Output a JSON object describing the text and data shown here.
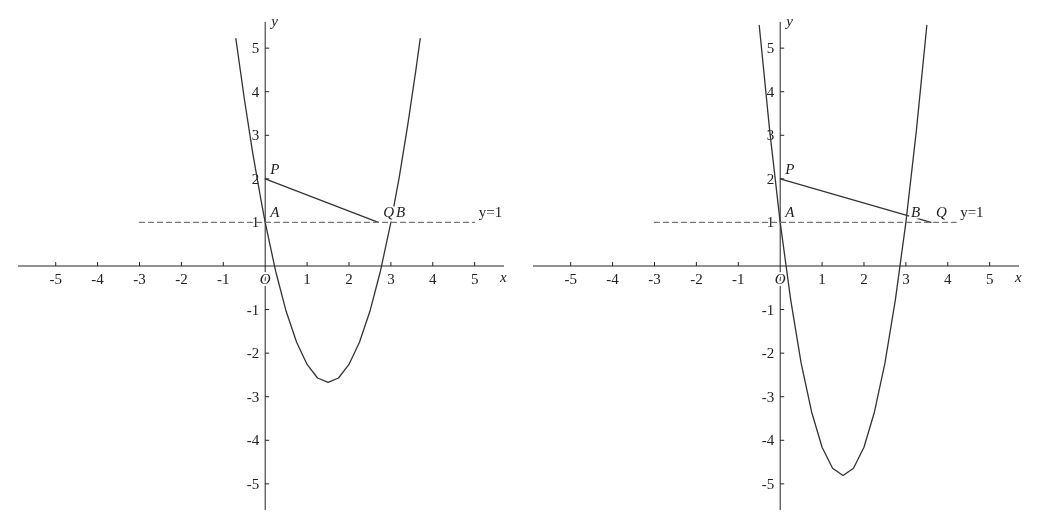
{
  "chart_data": [
    {
      "type": "line",
      "xlabel": "x",
      "ylabel": "y",
      "xlim": [
        -5.9,
        5.7
      ],
      "ylim": [
        -5.6,
        5.6
      ],
      "xticks": [
        -5,
        -4,
        -3,
        -2,
        -1,
        {
          "value": 0,
          "label": "O"
        },
        1,
        2,
        3,
        4,
        5
      ],
      "yticks": [
        -5,
        -4,
        -3,
        -2,
        -1,
        1,
        2,
        3,
        4,
        5
      ],
      "series": [
        {
          "color": "#333333",
          "line_style": "solid",
          "x": [
            -0.7,
            -0.5,
            -0.3,
            -0.1,
            0,
            0.25,
            0.5,
            0.75,
            1,
            1.25,
            1.5,
            1.75,
            2,
            2.25,
            2.5,
            2.75,
            3,
            3.2,
            3.4,
            3.6,
            3.7
          ],
          "values": [
            5.22,
            3.85,
            2.61,
            1.51,
            1,
            -0.12,
            -1.04,
            -1.75,
            -2.26,
            -2.57,
            -2.67,
            -2.57,
            -2.26,
            -1.75,
            -1.04,
            -0.12,
            1,
            2.04,
            3.22,
            4.52,
            5.22
          ]
        },
        {
          "color": "#333333",
          "line_style": "solid",
          "x": [
            0,
            2.7
          ],
          "values": [
            2,
            1
          ]
        },
        {
          "name": "y=1",
          "color": "#777777",
          "line_style": "dashed",
          "x": [
            -3,
            5
          ],
          "values": [
            1,
            1
          ]
        }
      ],
      "annotations": [
        {
          "text": "P",
          "x": 0,
          "y": 2
        },
        {
          "text": "A",
          "x": 0,
          "y": 1
        },
        {
          "text": "Q",
          "x": 2.7,
          "y": 1
        },
        {
          "text": "B",
          "x": 3,
          "y": 1
        }
      ]
    },
    {
      "type": "line",
      "xlabel": "x",
      "ylabel": "y",
      "xlim": [
        -5.9,
        5.7
      ],
      "ylim": [
        -5.6,
        5.6
      ],
      "xticks": [
        -5,
        -4,
        -3,
        -2,
        -1,
        {
          "value": 0,
          "label": "O"
        },
        1,
        2,
        3,
        4,
        5
      ],
      "yticks": [
        -5,
        -4,
        -3,
        -2,
        -1,
        1,
        2,
        3,
        4,
        5
      ],
      "series": [
        {
          "color": "#333333",
          "line_style": "solid",
          "x": [
            -0.5,
            -0.25,
            0,
            0.25,
            0.5,
            0.75,
            1,
            1.25,
            1.5,
            1.75,
            2,
            2.25,
            2.5,
            2.75,
            3,
            3.25,
            3.5
          ],
          "values": [
            5.52,
            3.1,
            1,
            -0.77,
            -2.23,
            -3.35,
            -4.16,
            -4.64,
            -4.81,
            -4.64,
            -4.16,
            -3.35,
            -2.23,
            -0.77,
            1,
            3.1,
            5.52
          ]
        },
        {
          "color": "#333333",
          "line_style": "solid",
          "x": [
            0,
            3.6
          ],
          "values": [
            2,
            1
          ]
        },
        {
          "name": "y=1",
          "color": "#777777",
          "line_style": "dashed",
          "x": [
            -3,
            4.2
          ],
          "values": [
            1,
            1
          ]
        }
      ],
      "annotations": [
        {
          "text": "P",
          "x": 0,
          "y": 2
        },
        {
          "text": "A",
          "x": 0,
          "y": 1
        },
        {
          "text": "B",
          "x": 3,
          "y": 1
        },
        {
          "text": "Q",
          "x": 3.6,
          "y": 1
        }
      ]
    }
  ]
}
